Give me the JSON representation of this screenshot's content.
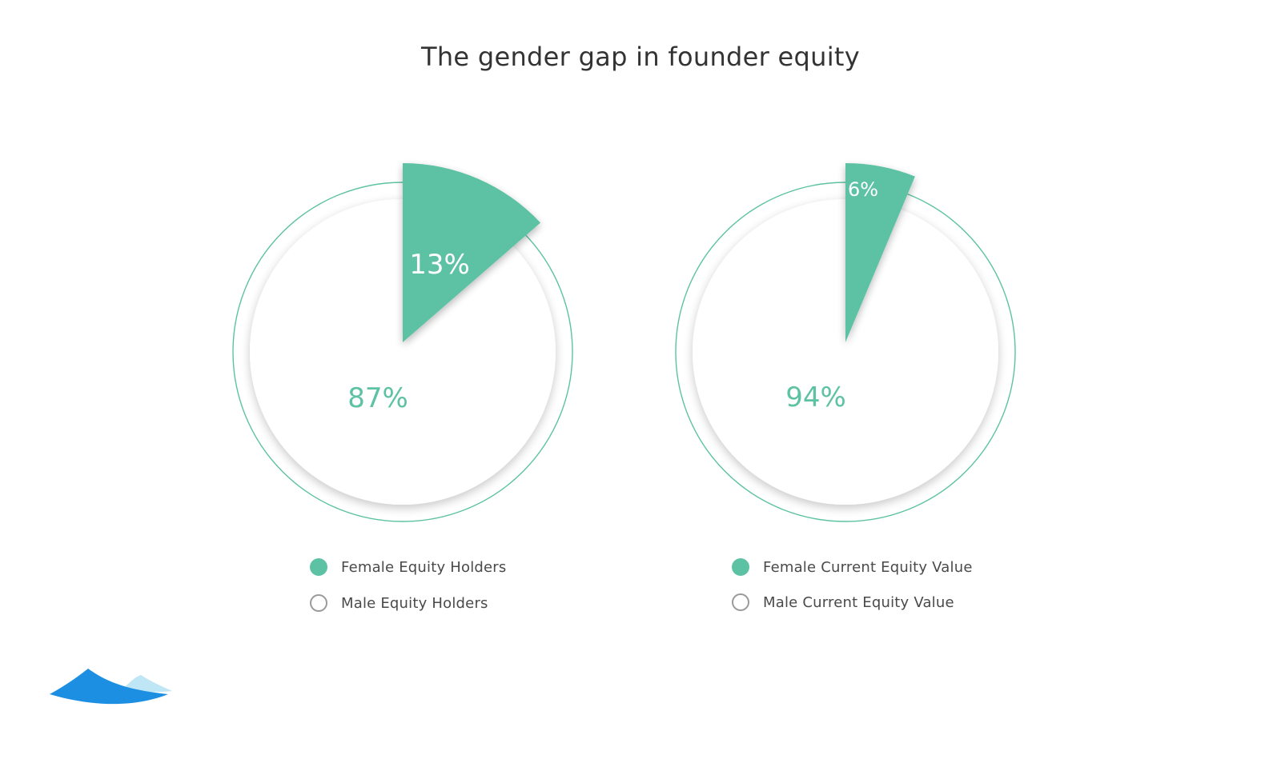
{
  "title": "The gender gap in founder equity",
  "colors": {
    "female": "#5dc2a3",
    "male_ring": "#5dc2a3",
    "male_fill": "#ffffff",
    "title": "#333333",
    "logo_dark": "#1c8fe3",
    "logo_light": "#bfe6f5"
  },
  "chart_data": [
    {
      "type": "pie",
      "series": [
        {
          "name": "Female Equity Holders",
          "value": 13,
          "label": "13%"
        },
        {
          "name": "Male Equity Holders",
          "value": 87,
          "label": "87%"
        }
      ],
      "legend": [
        {
          "label": "Female Equity Holders",
          "marker": "filled"
        },
        {
          "label": "Male Equity Holders",
          "marker": "hollow"
        }
      ],
      "legend_placement": "bottom"
    },
    {
      "type": "pie",
      "series": [
        {
          "name": "Female Current Equity Value",
          "value": 6,
          "label": "6%"
        },
        {
          "name": "Male Current Equity Value",
          "value": 94,
          "label": "94%"
        }
      ],
      "legend": [
        {
          "label": "Female Current Equity Value",
          "marker": "filled"
        },
        {
          "label": "Male Current Equity Value",
          "marker": "hollow"
        }
      ],
      "legend_placement": "bottom"
    }
  ],
  "logo": {
    "icon": "wave-logo-icon"
  }
}
